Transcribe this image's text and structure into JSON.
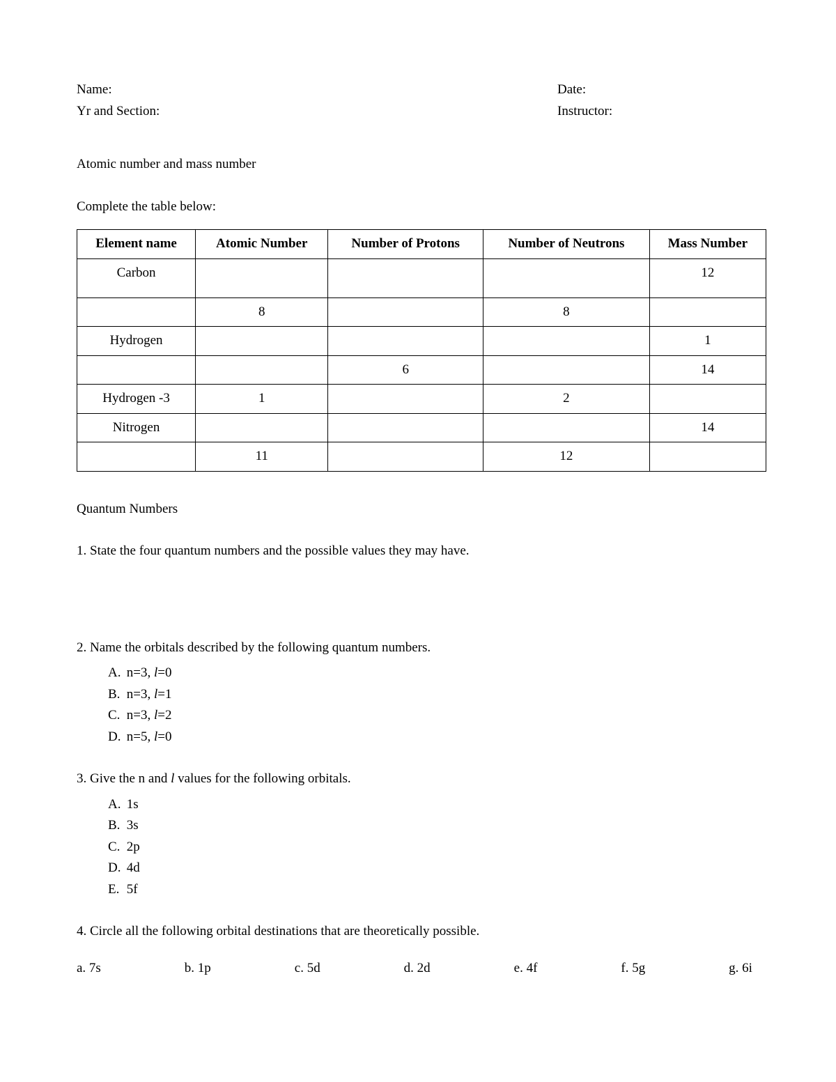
{
  "header": {
    "name_label": "Name:",
    "date_label": "Date:",
    "yr_section_label": "Yr and Section:",
    "instructor_label": "Instructor:"
  },
  "section1": {
    "title": "Atomic number and mass number",
    "instruction": "Complete the table below:",
    "table": {
      "columns": [
        "Element name",
        "Atomic Number",
        "Number of Protons",
        "Number of Neutrons",
        "Mass Number"
      ],
      "rows": [
        [
          "Carbon",
          "",
          "",
          "",
          "12"
        ],
        [
          "",
          "8",
          "",
          "8",
          ""
        ],
        [
          "Hydrogen",
          "",
          "",
          "",
          "1"
        ],
        [
          "",
          "",
          "6",
          "",
          "14"
        ],
        [
          "Hydrogen -3",
          "1",
          "",
          "2",
          ""
        ],
        [
          "Nitrogen",
          "",
          "",
          "",
          "14"
        ],
        [
          "",
          "11",
          "",
          "12",
          ""
        ]
      ]
    }
  },
  "section2": {
    "title": "Quantum Numbers",
    "q1": "1. State the four quantum numbers and the possible values they may have.",
    "q2": {
      "text": "2. Name the orbitals described by the following quantum numbers.",
      "items": [
        {
          "letter": "A.",
          "pre": "n=3, ",
          "l": "l",
          "post": "=0"
        },
        {
          "letter": "B.",
          "pre": "n=3, ",
          "l": "l",
          "post": "=1"
        },
        {
          "letter": "C.",
          "pre": "n=3, ",
          "l": "l",
          "post": "=2"
        },
        {
          "letter": "D.",
          "pre": "n=5, ",
          "l": "l",
          "post": "=0"
        }
      ]
    },
    "q3": {
      "pre": "3. Give the n and ",
      "l": "l",
      "post": " values for the following orbitals.",
      "items": [
        {
          "letter": "A.",
          "text": "1s"
        },
        {
          "letter": "B.",
          "text": "3s"
        },
        {
          "letter": "C.",
          "text": "2p"
        },
        {
          "letter": "D.",
          "text": "4d"
        },
        {
          "letter": "E.",
          "text": "5f"
        }
      ]
    },
    "q4": {
      "text": "4. Circle all the following orbital destinations that are theoretically possible.",
      "options": [
        {
          "letter": "a.",
          "text": "7s"
        },
        {
          "letter": "b.",
          "text": "1p"
        },
        {
          "letter": "c.",
          "text": "5d"
        },
        {
          "letter": "d.",
          "text": "2d"
        },
        {
          "letter": "e.",
          "text": "4f"
        },
        {
          "letter": "f.",
          "text": "5g"
        },
        {
          "letter": "g.",
          "text": "6i"
        }
      ]
    }
  }
}
